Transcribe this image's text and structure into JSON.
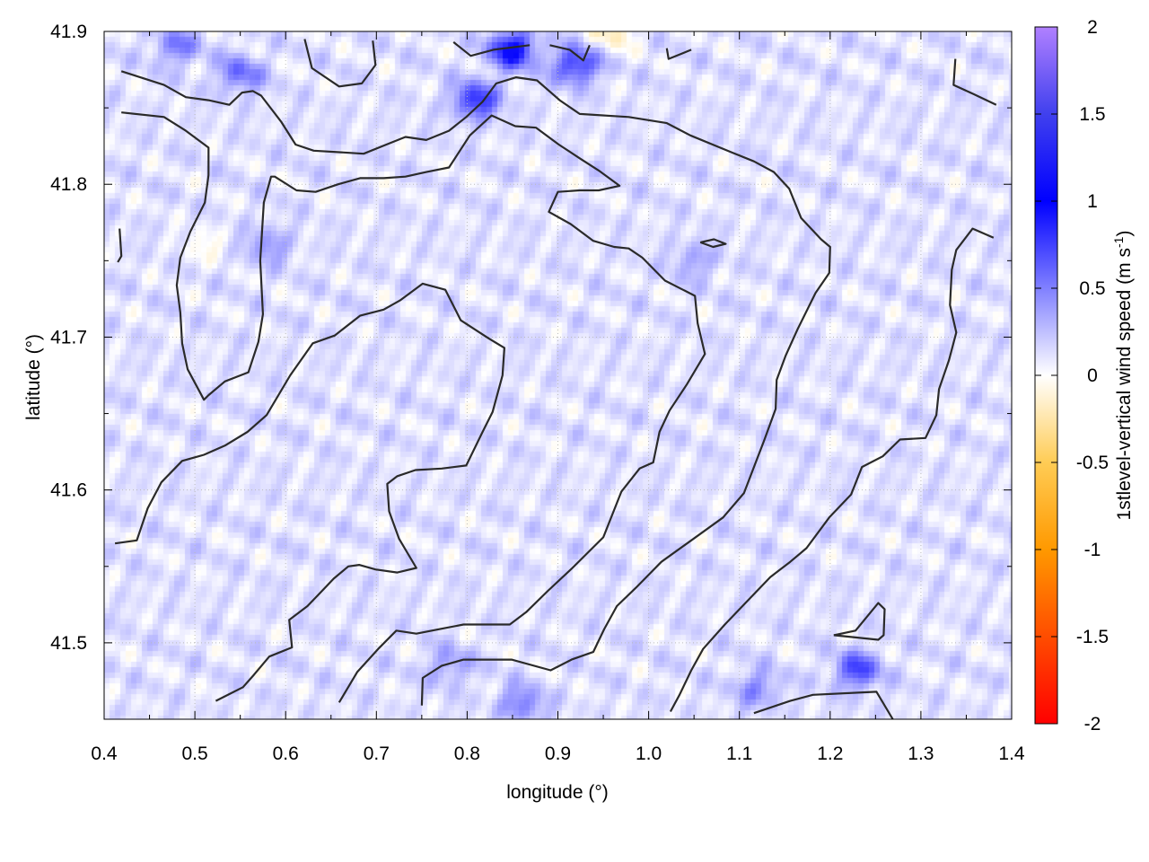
{
  "chart_data": {
    "type": "heatmap",
    "title": "",
    "xlabel": "longitude (°)",
    "ylabel": "latitude (°)",
    "xlim": [
      0.4,
      1.4
    ],
    "ylim": [
      41.45,
      41.9
    ],
    "xticks": [
      "0.4",
      "0.5",
      "0.6",
      "0.7",
      "0.8",
      "0.9",
      "1.0",
      "1.1",
      "1.2",
      "1.3",
      "1.4"
    ],
    "yticks": [
      "41.5",
      "41.6",
      "41.7",
      "41.8",
      "41.9"
    ],
    "grid": true,
    "colorbar": {
      "label": "1stlevel-vertical wind speed (m s",
      "label_sup": "-1",
      "label_end": ")",
      "range": [
        -2,
        2
      ],
      "ticks": [
        "2",
        "1.5",
        "1",
        "0.5",
        "0",
        "-0.5",
        "-1",
        "-1.5",
        "-2"
      ],
      "stops": [
        [
          -2,
          "#ff0000"
        ],
        [
          -1,
          "#ff9900"
        ],
        [
          -0.5,
          "#ffcc55"
        ],
        [
          0,
          "#ffffff"
        ],
        [
          0.5,
          "#8080ff"
        ],
        [
          1,
          "#0000ff"
        ],
        [
          1.5,
          "#4040ee"
        ],
        [
          2,
          "#b080ff"
        ]
      ]
    },
    "heatmap_peaks": [
      {
        "lon": 0.85,
        "lat": 41.888,
        "value": 0.9
      },
      {
        "lon": 0.81,
        "lat": 41.855,
        "value": 0.7
      },
      {
        "lon": 0.92,
        "lat": 41.878,
        "value": 0.7
      },
      {
        "lon": 0.55,
        "lat": 41.872,
        "value": 0.45
      },
      {
        "lon": 0.48,
        "lat": 41.89,
        "value": 0.4
      },
      {
        "lon": 0.58,
        "lat": 41.76,
        "value": 0.3
      },
      {
        "lon": 1.23,
        "lat": 41.482,
        "value": 0.6
      },
      {
        "lon": 0.86,
        "lat": 41.46,
        "value": 0.4
      },
      {
        "lon": 1.12,
        "lat": 41.47,
        "value": 0.35
      },
      {
        "lon": 0.78,
        "lat": 41.485,
        "value": 0.3
      },
      {
        "lon": 1.05,
        "lat": 41.75,
        "value": 0.25
      },
      {
        "lon": 0.96,
        "lat": 41.9,
        "value": -0.3
      },
      {
        "lon": 0.51,
        "lat": 41.76,
        "value": -0.15
      }
    ],
    "contour_color": "#2a2a2a",
    "contours": [
      [
        [
          0.419,
          41.874
        ],
        [
          0.466,
          41.865
        ],
        [
          0.49,
          41.857
        ],
        [
          0.515,
          41.855
        ],
        [
          0.538,
          41.852
        ],
        [
          0.552,
          41.86
        ],
        [
          0.564,
          41.861
        ],
        [
          0.573,
          41.858
        ],
        [
          0.595,
          41.841
        ],
        [
          0.611,
          41.826
        ],
        [
          0.631,
          41.822
        ],
        [
          0.659,
          41.821
        ],
        [
          0.686,
          41.82
        ],
        [
          0.711,
          41.826
        ],
        [
          0.732,
          41.831
        ],
        [
          0.755,
          41.829
        ],
        [
          0.78,
          41.835
        ],
        [
          0.799,
          41.844
        ],
        [
          0.817,
          41.854
        ],
        [
          0.832,
          41.866
        ],
        [
          0.854,
          41.87
        ],
        [
          0.877,
          41.868
        ],
        [
          0.902,
          41.855
        ],
        [
          0.924,
          41.846
        ],
        [
          0.978,
          41.844
        ],
        [
          1.02,
          41.84
        ],
        [
          1.046,
          41.832
        ],
        [
          1.091,
          41.821
        ],
        [
          1.116,
          41.815
        ],
        [
          1.138,
          41.808
        ],
        [
          1.155,
          41.797
        ],
        [
          1.168,
          41.778
        ],
        [
          1.19,
          41.764
        ],
        [
          1.2,
          41.759
        ],
        [
          1.199,
          41.742
        ],
        [
          1.184,
          41.729
        ],
        [
          1.164,
          41.705
        ],
        [
          1.151,
          41.688
        ],
        [
          1.141,
          41.672
        ],
        [
          1.14,
          41.653
        ],
        [
          1.127,
          41.632
        ],
        [
          1.105,
          41.598
        ],
        [
          1.082,
          41.582
        ],
        [
          1.047,
          41.567
        ],
        [
          1.014,
          41.553
        ],
        [
          0.986,
          41.536
        ],
        [
          0.965,
          41.524
        ],
        [
          0.951,
          41.509
        ],
        [
          0.939,
          41.494
        ],
        [
          0.915,
          41.489
        ],
        [
          0.892,
          41.482
        ],
        [
          0.849,
          41.489
        ],
        [
          0.796,
          41.489
        ],
        [
          0.772,
          41.485
        ],
        [
          0.751,
          41.477
        ],
        [
          0.75,
          41.459
        ]
      ],
      [
        [
          0.419,
          41.847
        ],
        [
          0.466,
          41.844
        ],
        [
          0.49,
          41.835
        ],
        [
          0.515,
          41.824
        ],
        [
          0.515,
          41.806
        ],
        [
          0.511,
          41.788
        ],
        [
          0.495,
          41.769
        ],
        [
          0.484,
          41.752
        ],
        [
          0.48,
          41.734
        ],
        [
          0.484,
          41.716
        ],
        [
          0.486,
          41.696
        ],
        [
          0.492,
          41.679
        ],
        [
          0.501,
          41.669
        ],
        [
          0.51,
          41.659
        ],
        [
          0.515,
          41.662
        ],
        [
          0.533,
          41.671
        ],
        [
          0.559,
          41.677
        ],
        [
          0.57,
          41.697
        ],
        [
          0.575,
          41.715
        ],
        [
          0.572,
          41.75
        ],
        [
          0.576,
          41.788
        ],
        [
          0.584,
          41.805
        ],
        [
          0.588,
          41.805
        ],
        [
          0.612,
          41.796
        ],
        [
          0.633,
          41.795
        ],
        [
          0.658,
          41.8
        ],
        [
          0.682,
          41.804
        ],
        [
          0.708,
          41.804
        ],
        [
          0.732,
          41.805
        ],
        [
          0.755,
          41.808
        ],
        [
          0.78,
          41.811
        ],
        [
          0.803,
          41.832
        ],
        [
          0.827,
          41.845
        ],
        [
          0.853,
          41.838
        ],
        [
          0.876,
          41.837
        ],
        [
          0.901,
          41.826
        ],
        [
          0.924,
          41.817
        ],
        [
          0.945,
          41.809
        ],
        [
          0.968,
          41.799
        ],
        [
          0.945,
          41.796
        ],
        [
          0.924,
          41.796
        ],
        [
          0.9,
          41.795
        ],
        [
          0.89,
          41.782
        ],
        [
          0.914,
          41.774
        ],
        [
          0.939,
          41.763
        ],
        [
          0.962,
          41.759
        ],
        [
          0.978,
          41.758
        ],
        [
          0.993,
          41.752
        ],
        [
          1.018,
          41.737
        ],
        [
          1.051,
          41.727
        ],
        [
          1.054,
          41.709
        ],
        [
          1.062,
          41.689
        ],
        [
          1.042,
          41.669
        ],
        [
          1.023,
          41.652
        ],
        [
          1.012,
          41.638
        ],
        [
          1.005,
          41.618
        ],
        [
          0.99,
          41.614
        ],
        [
          0.97,
          41.599
        ],
        [
          0.95,
          41.569
        ],
        [
          0.916,
          41.549
        ],
        [
          0.889,
          41.534
        ],
        [
          0.865,
          41.52
        ],
        [
          0.847,
          41.512
        ],
        [
          0.796,
          41.512
        ],
        [
          0.77,
          41.509
        ],
        [
          0.744,
          41.506
        ],
        [
          0.722,
          41.508
        ],
        [
          0.702,
          41.496
        ],
        [
          0.679,
          41.481
        ],
        [
          0.659,
          41.461
        ]
      ],
      [
        [
          0.412,
          41.565
        ],
        [
          0.436,
          41.567
        ],
        [
          0.448,
          41.588
        ],
        [
          0.463,
          41.605
        ],
        [
          0.486,
          41.619
        ],
        [
          0.51,
          41.623
        ],
        [
          0.533,
          41.629
        ],
        [
          0.558,
          41.638
        ],
        [
          0.579,
          41.649
        ],
        [
          0.605,
          41.675
        ],
        [
          0.63,
          41.696
        ],
        [
          0.654,
          41.701
        ],
        [
          0.682,
          41.714
        ],
        [
          0.708,
          41.718
        ],
        [
          0.726,
          41.724
        ],
        [
          0.751,
          41.735
        ],
        [
          0.776,
          41.731
        ],
        [
          0.793,
          41.711
        ],
        [
          0.824,
          41.699
        ],
        [
          0.841,
          41.693
        ],
        [
          0.839,
          41.675
        ],
        [
          0.828,
          41.651
        ],
        [
          0.817,
          41.638
        ],
        [
          0.799,
          41.616
        ],
        [
          0.772,
          41.614
        ],
        [
          0.743,
          41.613
        ],
        [
          0.723,
          41.609
        ],
        [
          0.712,
          41.604
        ],
        [
          0.714,
          41.586
        ],
        [
          0.725,
          41.568
        ],
        [
          0.744,
          41.549
        ],
        [
          0.723,
          41.546
        ],
        [
          0.699,
          41.548
        ],
        [
          0.681,
          41.551
        ],
        [
          0.669,
          41.55
        ],
        [
          0.653,
          41.542
        ],
        [
          0.637,
          41.532
        ],
        [
          0.624,
          41.524
        ],
        [
          0.604,
          41.515
        ],
        [
          0.607,
          41.497
        ],
        [
          0.582,
          41.491
        ],
        [
          0.565,
          41.479
        ],
        [
          0.553,
          41.471
        ],
        [
          0.523,
          41.462
        ]
      ],
      [
        [
          1.057,
          41.762
        ],
        [
          1.072,
          41.764
        ],
        [
          1.085,
          41.761
        ],
        [
          1.071,
          41.759
        ],
        [
          1.057,
          41.762
        ]
      ],
      [
        [
          1.338,
          41.882
        ],
        [
          1.336,
          41.865
        ],
        [
          1.358,
          41.859
        ],
        [
          1.383,
          41.852
        ]
      ],
      [
        [
          1.38,
          41.765
        ],
        [
          1.357,
          41.771
        ],
        [
          1.339,
          41.757
        ],
        [
          1.334,
          41.744
        ],
        [
          1.332,
          41.721
        ],
        [
          1.339,
          41.703
        ],
        [
          1.331,
          41.685
        ],
        [
          1.32,
          41.666
        ],
        [
          1.317,
          41.649
        ],
        [
          1.305,
          41.634
        ],
        [
          1.277,
          41.633
        ],
        [
          1.258,
          41.622
        ],
        [
          1.235,
          41.615
        ],
        [
          1.223,
          41.597
        ],
        [
          1.199,
          41.582
        ],
        [
          1.174,
          41.562
        ],
        [
          1.156,
          41.553
        ],
        [
          1.134,
          41.543
        ],
        [
          1.105,
          41.525
        ],
        [
          1.084,
          41.512
        ],
        [
          1.06,
          41.496
        ],
        [
          1.047,
          41.482
        ],
        [
          1.034,
          41.466
        ],
        [
          1.024,
          41.455
        ]
      ],
      [
        [
          1.204,
          41.505
        ],
        [
          1.228,
          41.508
        ],
        [
          1.253,
          41.526
        ],
        [
          1.26,
          41.522
        ],
        [
          1.259,
          41.505
        ],
        [
          1.253,
          41.502
        ],
        [
          1.204,
          41.505
        ]
      ],
      [
        [
          1.116,
          41.454
        ],
        [
          1.156,
          41.462
        ],
        [
          1.181,
          41.466
        ],
        [
          1.251,
          41.468
        ],
        [
          1.269,
          41.45
        ]
      ],
      [
        [
          0.621,
          41.895
        ],
        [
          0.629,
          41.876
        ],
        [
          0.659,
          41.864
        ],
        [
          0.684,
          41.866
        ],
        [
          0.699,
          41.878
        ],
        [
          0.696,
          41.894
        ]
      ],
      [
        [
          0.785,
          41.893
        ],
        [
          0.804,
          41.884
        ],
        [
          0.829,
          41.888
        ],
        [
          0.869,
          41.891
        ]
      ],
      [
        [
          0.891,
          41.891
        ],
        [
          0.913,
          41.888
        ],
        [
          0.928,
          41.881
        ],
        [
          0.935,
          41.891
        ]
      ],
      [
        [
          1.02,
          41.889
        ],
        [
          1.022,
          41.882
        ],
        [
          1.047,
          41.888
        ]
      ],
      [
        [
          0.417,
          41.771
        ],
        [
          0.419,
          41.753
        ],
        [
          0.415,
          41.749
        ]
      ]
    ]
  }
}
